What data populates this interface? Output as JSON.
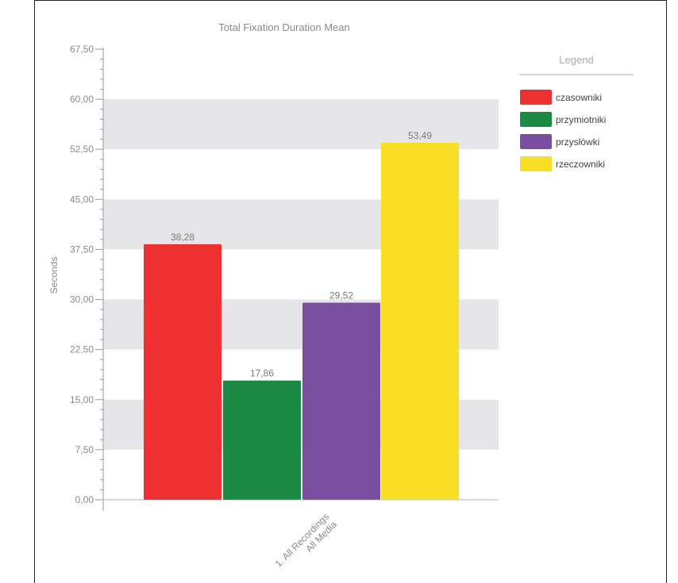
{
  "chart_data": {
    "type": "bar",
    "title": "Total Fixation Duration Mean",
    "ylabel": "Seconds",
    "xlabel": "",
    "ylim": [
      0,
      67.5
    ],
    "yticks": [
      "0,00",
      "7,50",
      "15,00",
      "22,50",
      "30,00",
      "37,50",
      "45,00",
      "52,50",
      "60,00",
      "67,50"
    ],
    "ytick_values": [
      0,
      7.5,
      15,
      22.5,
      30,
      37.5,
      45,
      52.5,
      60,
      67.5
    ],
    "categories": [
      "1. All Recordings All Media"
    ],
    "category_label_lines": [
      "1. All Recordings",
      "All Media"
    ],
    "series": [
      {
        "name": "czasowniki",
        "color": "#ef3030",
        "values": [
          38.28
        ],
        "label": "38,28"
      },
      {
        "name": "przymiotniki",
        "color": "#1a8a45",
        "values": [
          17.86
        ],
        "label": "17,86"
      },
      {
        "name": "przysłówki",
        "color": "#7a4e9e",
        "values": [
          29.52
        ],
        "label": "29,52"
      },
      {
        "name": "rzeczowniki",
        "color": "#fadd25",
        "values": [
          53.49
        ],
        "label": "53,49"
      }
    ],
    "legend": {
      "title": "Legend",
      "position": "right"
    },
    "grid": "alternating horizontal bands"
  }
}
